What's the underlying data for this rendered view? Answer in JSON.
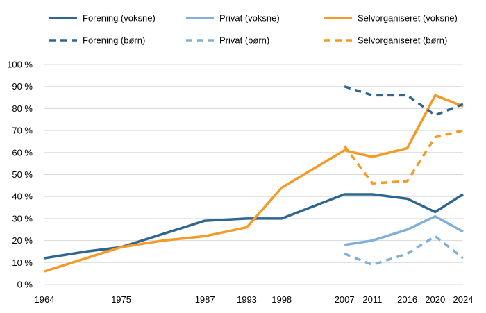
{
  "chart_data": {
    "type": "line",
    "title": "",
    "xlabel": "",
    "ylabel": "",
    "ylim": [
      0,
      100
    ],
    "grid": true,
    "legend_position": "top",
    "y_ticks": [
      "0 %",
      "10 %",
      "20 %",
      "30 %",
      "40 %",
      "50 %",
      "60 %",
      "70 %",
      "80 %",
      "90 %",
      "100 %"
    ],
    "x_ticks": [
      "1964",
      "1975",
      "1987",
      "1993",
      "1998",
      "2007",
      "2011",
      "2016",
      "2020",
      "2024"
    ],
    "series": [
      {
        "name": "Forening (voksne)",
        "color": "#2e6690",
        "dash": "solid",
        "x": [
          1964,
          1970,
          1975,
          1981,
          1987,
          1993,
          1998,
          2007,
          2011,
          2016,
          2020,
          2024
        ],
        "y": [
          12,
          15,
          17,
          23,
          29,
          30,
          30,
          41,
          41,
          39,
          33,
          41
        ]
      },
      {
        "name": "Privat (voksne)",
        "color": "#7fb0d9",
        "dash": "solid",
        "x": [
          2007,
          2011,
          2016,
          2020,
          2024
        ],
        "y": [
          18,
          20,
          25,
          31,
          24
        ]
      },
      {
        "name": "Selvorganiseret (voksne)",
        "color": "#f49a25",
        "dash": "solid",
        "x": [
          1964,
          1970,
          1975,
          1981,
          1987,
          1993,
          1998,
          2007,
          2011,
          2016,
          2020,
          2024
        ],
        "y": [
          6,
          12,
          17,
          20,
          22,
          26,
          44,
          61,
          58,
          62,
          86,
          81
        ]
      },
      {
        "name": "Forening (børn)",
        "color": "#2e6690",
        "dash": "dashed",
        "x": [
          2007,
          2011,
          2016,
          2020,
          2024
        ],
        "y": [
          90,
          86,
          86,
          77,
          82
        ]
      },
      {
        "name": "Privat (børn)",
        "color": "#7fb0d9",
        "dash": "dashed",
        "x": [
          2007,
          2011,
          2016,
          2020,
          2024
        ],
        "y": [
          14,
          9,
          14,
          22,
          12
        ]
      },
      {
        "name": "Selvorganiseret (børn)",
        "color": "#f49a25",
        "dash": "dashed",
        "x": [
          2007,
          2011,
          2016,
          2020,
          2024
        ],
        "y": [
          63,
          46,
          47,
          67,
          70
        ]
      }
    ]
  }
}
